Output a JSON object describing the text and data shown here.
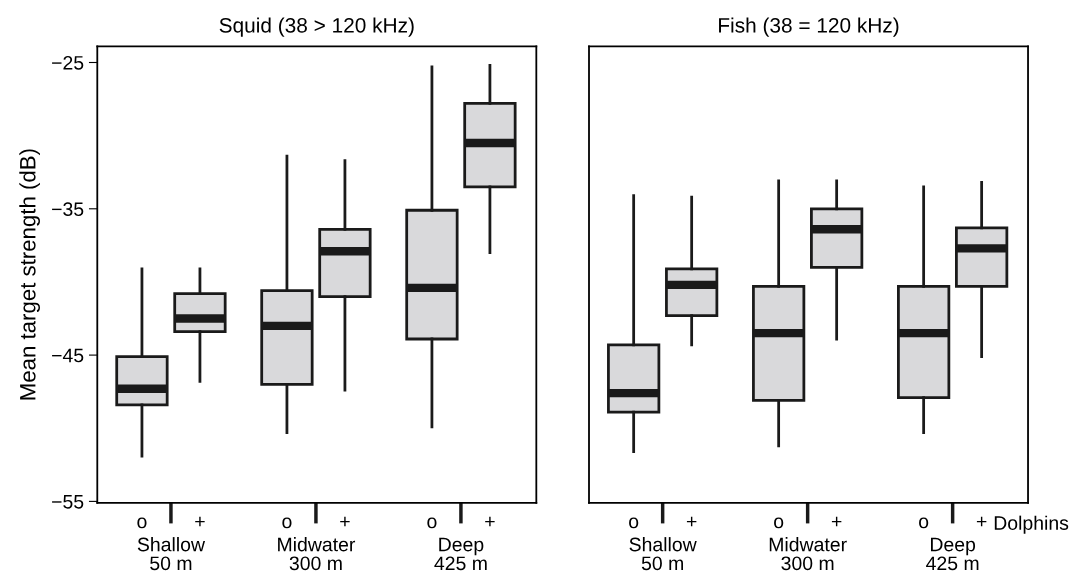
{
  "chart_data": [
    {
      "type": "box",
      "title": "Squid (38 > 120 kHz)",
      "ylabel": "Mean target strength (dB)",
      "categories": [
        "o",
        "+",
        "o",
        "+",
        "o",
        "+"
      ],
      "color": "#d9d9db",
      "ylim": [
        -55.1,
        -23.9
      ],
      "yticks": [
        {
          "value": -25,
          "label": "−25"
        },
        {
          "value": -35,
          "label": "−35"
        },
        {
          "value": -45,
          "label": "−45"
        },
        {
          "value": -55,
          "label": "−55"
        }
      ],
      "grid": false,
      "boxes": [
        {
          "low": -51.9,
          "q1": -48.4,
          "median": -47.3,
          "q3": -45.1,
          "high": -39.1
        },
        {
          "low": -46.8,
          "q1": -43.4,
          "median": -42.5,
          "q3": -40.8,
          "high": -39.1
        },
        {
          "low": -50.3,
          "q1": -47.0,
          "median": -43.0,
          "q3": -40.6,
          "high": -31.4
        },
        {
          "low": -47.4,
          "q1": -41.0,
          "median": -37.9,
          "q3": -36.4,
          "high": -31.7
        },
        {
          "low": -49.9,
          "q1": -43.9,
          "median": -40.4,
          "q3": -35.1,
          "high": -25.3
        },
        {
          "low": -38.0,
          "q1": -33.5,
          "median": -30.5,
          "q3": -27.8,
          "high": -25.2
        }
      ],
      "annotations": [
        "Shallow\n50 m",
        "Midwater\n300 m",
        "Deep\n425 m"
      ]
    },
    {
      "type": "box",
      "title": "Fish (38 = 120 kHz)",
      "categories": [
        "o",
        "+",
        "o",
        "+",
        "o",
        "+"
      ],
      "color": "#d9d9db",
      "ylim": [
        -55.1,
        -23.9
      ],
      "grid": false,
      "tick_labels": "x",
      "boxes": [
        {
          "low": -51.6,
          "q1": -48.9,
          "median": -47.6,
          "q3": -44.3,
          "high": -34.1
        },
        {
          "low": -44.3,
          "q1": -42.3,
          "median": -40.2,
          "q3": -39.1,
          "high": -34.2
        },
        {
          "low": -51.2,
          "q1": -48.1,
          "median": -43.5,
          "q3": -40.3,
          "high": -33.1
        },
        {
          "low": -43.9,
          "q1": -39.0,
          "median": -36.4,
          "q3": -35.0,
          "high": -33.1
        },
        {
          "low": -50.3,
          "q1": -47.9,
          "median": -43.5,
          "q3": -40.3,
          "high": -33.5
        },
        {
          "low": -45.1,
          "q1": -40.3,
          "median": -37.7,
          "q3": -36.3,
          "high": -33.2
        }
      ],
      "annotations": [
        "Shallow\n50 m",
        "Midwater\n300 m",
        "Deep\n425 m",
        "Dolphins"
      ]
    }
  ]
}
